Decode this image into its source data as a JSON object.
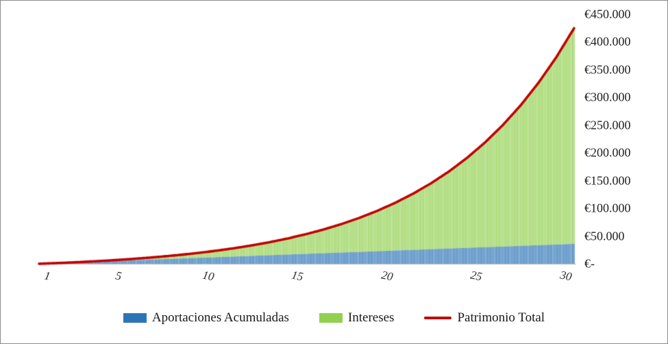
{
  "chart_data": {
    "type": "stacked-bar+line",
    "title": "",
    "grid": false,
    "legend_position": "bottom",
    "x_axis": {
      "label": "",
      "tick_labels": [
        "1",
        "5",
        "10",
        "15",
        "20",
        "25",
        "30"
      ],
      "tick_years": [
        1,
        5,
        10,
        15,
        20,
        25,
        30
      ],
      "range_years": [
        1,
        30
      ],
      "bars_rendered_per_year": 12
    },
    "y_axis": {
      "label": "",
      "position": "right",
      "min": 0,
      "max": 450000,
      "step": 50000,
      "tick_labels": [
        "€450.000",
        "€400.000",
        "€350.000",
        "€300.000",
        "€250.000",
        "€200.000",
        "€150.000",
        "€100.000",
        "€50.000",
        "€-"
      ]
    },
    "categories_years": [
      1,
      2,
      3,
      4,
      5,
      6,
      7,
      8,
      9,
      10,
      11,
      12,
      13,
      14,
      15,
      16,
      17,
      18,
      19,
      20,
      21,
      22,
      23,
      24,
      25,
      26,
      27,
      28,
      29,
      30
    ],
    "series": [
      {
        "name": "Aportaciones Acumuladas",
        "render": "bar-stacked",
        "color": "#2E75B6",
        "values": [
          1200,
          2400,
          3600,
          4800,
          6000,
          7200,
          8400,
          9600,
          10800,
          12000,
          13200,
          14400,
          15600,
          16800,
          18000,
          19200,
          20400,
          21600,
          22800,
          24000,
          25200,
          26400,
          27600,
          28800,
          30000,
          31200,
          32400,
          33600,
          34800,
          36000
        ]
      },
      {
        "name": "Intereses",
        "render": "bar-stacked",
        "color": "#92D050",
        "values": [
          40,
          250,
          650,
          1280,
          2150,
          3320,
          4810,
          6670,
          8950,
          11720,
          15030,
          18970,
          23610,
          29060,
          35430,
          42840,
          51450,
          61400,
          72900,
          86140,
          101390,
          118900,
          138990,
          162030,
          188410,
          218590,
          253110,
          292560,
          337610,
          389070
        ]
      },
      {
        "name": "Patrimonio Total",
        "render": "line",
        "color": "#C00000",
        "values": [
          1240,
          2650,
          4250,
          6080,
          8150,
          10520,
          13210,
          16270,
          19750,
          23720,
          28230,
          33370,
          39210,
          45860,
          53430,
          62040,
          71850,
          83000,
          95700,
          110140,
          126590,
          145300,
          166590,
          190830,
          218410,
          249790,
          285510,
          326160,
          372410,
          425070
        ]
      }
    ]
  },
  "legend": {
    "items": [
      {
        "label": "Aportaciones Acumuladas",
        "color": "#2E75B6",
        "swatch": "rect"
      },
      {
        "label": "Intereses",
        "color": "#92D050",
        "swatch": "rect"
      },
      {
        "label": "Patrimonio Total",
        "color": "#C00000",
        "swatch": "line"
      }
    ]
  },
  "colors": {
    "frame_border": "#8C8C8C",
    "axis_line": "#BFBFBF",
    "axis_text": "#1F1F1F",
    "background": "#FFFFFF"
  }
}
